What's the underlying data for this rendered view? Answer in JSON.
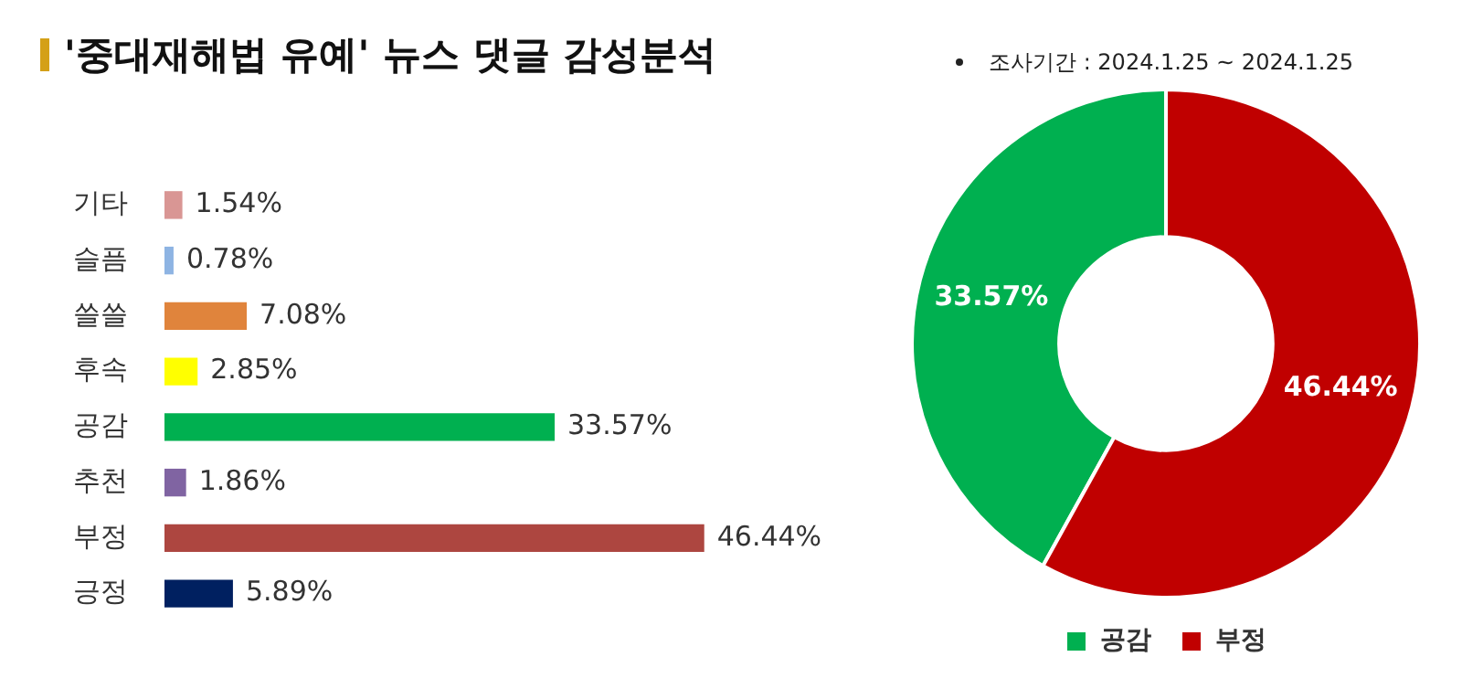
{
  "chart_data": [
    {
      "type": "bar",
      "title": "'중대재해법 유예' 뉴스 댓글 감성분석",
      "orientation": "horizontal",
      "categories": [
        "기타",
        "슬픔",
        "쓸쓸",
        "후속",
        "공감",
        "추천",
        "부정",
        "긍정"
      ],
      "values": [
        1.54,
        0.78,
        7.08,
        2.85,
        33.57,
        1.86,
        46.44,
        5.89
      ],
      "colors": [
        "#d99694",
        "#8eb4e3",
        "#e0843c",
        "#ffff00",
        "#00b050",
        "#8064a2",
        "#ad4640",
        "#002060"
      ],
      "value_labels": [
        "1.54%",
        "0.78%",
        "7.08%",
        "2.85%",
        "33.57%",
        "1.86%",
        "46.44%",
        "5.89%"
      ]
    },
    {
      "type": "donut",
      "annotations": [
        "조사기간 : 2024.1.25 ~ 2024.1.25"
      ],
      "categories": [
        "공감",
        "부정"
      ],
      "values": [
        33.57,
        46.44
      ],
      "colors": [
        "#00b050",
        "#c00000"
      ],
      "value_labels": [
        "33.57%",
        "46.44%"
      ],
      "legend": "bottom"
    }
  ]
}
